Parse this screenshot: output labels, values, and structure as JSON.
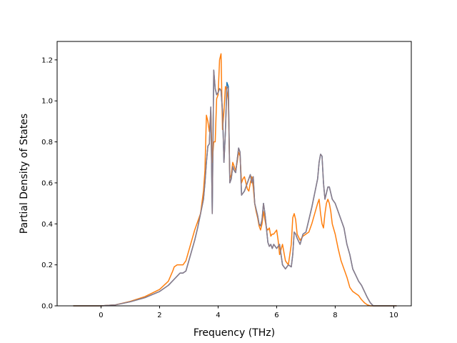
{
  "chart_data": {
    "type": "line",
    "title": "",
    "xlabel": "Frequency (THz)",
    "ylabel": "Partial Density of States",
    "xlim": [
      -1.5,
      10.6
    ],
    "ylim": [
      0.0,
      1.29
    ],
    "xticks": [
      0,
      2,
      4,
      6,
      8,
      10
    ],
    "yticks": [
      0.0,
      0.2,
      0.4,
      0.6,
      0.8,
      1.0,
      1.2
    ],
    "xtick_labels": [
      "0",
      "2",
      "4",
      "6",
      "8",
      "10"
    ],
    "ytick_labels": [
      "0.0",
      "0.2",
      "0.4",
      "0.6",
      "0.8",
      "1.0",
      "1.2"
    ],
    "grid": false,
    "legend": "none",
    "series": [
      {
        "color": "#1f77b4",
        "x": [
          -0.95,
          0.0,
          0.5,
          1.0,
          1.5,
          2.0,
          2.3,
          2.5,
          2.7,
          2.8,
          2.9,
          3.0,
          3.1,
          3.2,
          3.3,
          3.4,
          3.5,
          3.55,
          3.6,
          3.65,
          3.7,
          3.75,
          3.8,
          3.85,
          3.9,
          3.95,
          4.0,
          4.05,
          4.1,
          4.15,
          4.2,
          4.25,
          4.3,
          4.35,
          4.4,
          4.45,
          4.5,
          4.55,
          4.6,
          4.65,
          4.7,
          4.75,
          4.8,
          4.85,
          4.9,
          4.95,
          5.0,
          5.05,
          5.1,
          5.15,
          5.2,
          5.25,
          5.3,
          5.35,
          5.4,
          5.45,
          5.5,
          5.55,
          5.6,
          5.65,
          5.7,
          5.75,
          5.8,
          5.85,
          5.9,
          6.0,
          6.1,
          6.2,
          6.3,
          6.4,
          6.5,
          6.55,
          6.6,
          6.65,
          6.7,
          6.8,
          6.9,
          7.0,
          7.1,
          7.2,
          7.3,
          7.4,
          7.45,
          7.5,
          7.55,
          7.6,
          7.65,
          7.7,
          7.75,
          7.8,
          7.85,
          7.9,
          8.0,
          8.1,
          8.2,
          8.3,
          8.4,
          8.5,
          8.6,
          8.7,
          8.8,
          8.9,
          9.0,
          9.1,
          9.2,
          9.3,
          10.1
        ],
        "y": [
          0.0,
          0.0,
          0.005,
          0.02,
          0.04,
          0.07,
          0.1,
          0.13,
          0.16,
          0.16,
          0.17,
          0.22,
          0.27,
          0.32,
          0.38,
          0.45,
          0.52,
          0.6,
          0.7,
          0.78,
          0.79,
          0.97,
          0.45,
          1.15,
          1.06,
          1.03,
          1.04,
          1.06,
          1.05,
          0.95,
          0.7,
          0.85,
          1.09,
          1.07,
          0.6,
          0.62,
          0.68,
          0.66,
          0.65,
          0.71,
          0.77,
          0.75,
          0.54,
          0.55,
          0.56,
          0.58,
          0.6,
          0.62,
          0.64,
          0.6,
          0.63,
          0.5,
          0.47,
          0.44,
          0.4,
          0.39,
          0.42,
          0.5,
          0.45,
          0.38,
          0.31,
          0.29,
          0.3,
          0.28,
          0.3,
          0.28,
          0.3,
          0.2,
          0.18,
          0.2,
          0.19,
          0.25,
          0.36,
          0.35,
          0.33,
          0.3,
          0.35,
          0.36,
          0.42,
          0.48,
          0.55,
          0.62,
          0.7,
          0.74,
          0.73,
          0.6,
          0.52,
          0.55,
          0.58,
          0.58,
          0.55,
          0.52,
          0.5,
          0.46,
          0.42,
          0.38,
          0.3,
          0.25,
          0.18,
          0.15,
          0.12,
          0.1,
          0.07,
          0.04,
          0.015,
          0.0,
          0.0
        ]
      },
      {
        "color": "#ff7f0e",
        "x": [
          -0.95,
          0.0,
          0.5,
          1.0,
          1.5,
          2.0,
          2.3,
          2.45,
          2.5,
          2.6,
          2.7,
          2.8,
          2.9,
          3.0,
          3.1,
          3.2,
          3.3,
          3.4,
          3.5,
          3.55,
          3.6,
          3.65,
          3.7,
          3.75,
          3.8,
          3.85,
          3.9,
          3.95,
          4.0,
          4.05,
          4.1,
          4.15,
          4.2,
          4.25,
          4.3,
          4.35,
          4.4,
          4.45,
          4.5,
          4.55,
          4.6,
          4.65,
          4.7,
          4.75,
          4.8,
          4.85,
          4.9,
          4.95,
          5.0,
          5.05,
          5.1,
          5.15,
          5.2,
          5.25,
          5.3,
          5.35,
          5.4,
          5.45,
          5.5,
          5.55,
          5.6,
          5.65,
          5.7,
          5.75,
          5.8,
          5.85,
          5.9,
          6.0,
          6.05,
          6.1,
          6.2,
          6.3,
          6.4,
          6.5,
          6.55,
          6.6,
          6.65,
          6.7,
          6.8,
          6.9,
          7.0,
          7.1,
          7.2,
          7.3,
          7.4,
          7.45,
          7.5,
          7.55,
          7.6,
          7.65,
          7.7,
          7.75,
          7.8,
          7.85,
          7.9,
          8.0,
          8.1,
          8.2,
          8.3,
          8.4,
          8.5,
          8.6,
          8.7,
          8.8,
          8.9,
          9.0,
          9.1,
          9.2,
          10.1
        ],
        "y": [
          0.0,
          0.0,
          0.005,
          0.022,
          0.045,
          0.08,
          0.12,
          0.17,
          0.19,
          0.2,
          0.2,
          0.2,
          0.22,
          0.27,
          0.32,
          0.37,
          0.41,
          0.45,
          0.56,
          0.66,
          0.93,
          0.9,
          0.85,
          0.95,
          0.7,
          0.8,
          0.8,
          1.01,
          1.03,
          1.2,
          1.23,
          0.86,
          0.95,
          1.07,
          1.05,
          1.0,
          0.62,
          0.64,
          0.7,
          0.68,
          0.66,
          0.7,
          0.75,
          0.73,
          0.6,
          0.62,
          0.63,
          0.6,
          0.57,
          0.56,
          0.6,
          0.63,
          0.58,
          0.5,
          0.46,
          0.43,
          0.39,
          0.37,
          0.4,
          0.46,
          0.42,
          0.38,
          0.37,
          0.38,
          0.34,
          0.35,
          0.35,
          0.37,
          0.32,
          0.25,
          0.3,
          0.22,
          0.2,
          0.3,
          0.43,
          0.45,
          0.42,
          0.35,
          0.32,
          0.34,
          0.35,
          0.36,
          0.4,
          0.45,
          0.5,
          0.52,
          0.45,
          0.4,
          0.38,
          0.45,
          0.5,
          0.52,
          0.5,
          0.46,
          0.4,
          0.35,
          0.28,
          0.22,
          0.18,
          0.14,
          0.09,
          0.07,
          0.06,
          0.05,
          0.03,
          0.015,
          0.005,
          0.0,
          0.0
        ]
      },
      {
        "color": "#8c7b88",
        "x": [
          -0.95,
          0.0,
          0.5,
          1.0,
          1.5,
          2.0,
          2.3,
          2.5,
          2.7,
          2.8,
          2.9,
          3.0,
          3.1,
          3.2,
          3.3,
          3.4,
          3.5,
          3.55,
          3.6,
          3.65,
          3.7,
          3.75,
          3.8,
          3.85,
          3.9,
          3.95,
          4.0,
          4.05,
          4.1,
          4.15,
          4.2,
          4.25,
          4.3,
          4.35,
          4.4,
          4.45,
          4.5,
          4.55,
          4.6,
          4.65,
          4.7,
          4.75,
          4.8,
          4.85,
          4.9,
          4.95,
          5.0,
          5.05,
          5.1,
          5.15,
          5.2,
          5.25,
          5.3,
          5.35,
          5.4,
          5.45,
          5.5,
          5.55,
          5.6,
          5.65,
          5.7,
          5.75,
          5.8,
          5.85,
          5.9,
          6.0,
          6.1,
          6.2,
          6.3,
          6.4,
          6.5,
          6.55,
          6.6,
          6.65,
          6.7,
          6.8,
          6.9,
          7.0,
          7.1,
          7.2,
          7.3,
          7.4,
          7.45,
          7.5,
          7.55,
          7.6,
          7.65,
          7.7,
          7.75,
          7.8,
          7.85,
          7.9,
          8.0,
          8.1,
          8.2,
          8.3,
          8.4,
          8.5,
          8.6,
          8.7,
          8.8,
          8.9,
          9.0,
          9.1,
          9.2,
          9.3,
          10.1
        ],
        "y": [
          0.0,
          0.0,
          0.005,
          0.02,
          0.04,
          0.07,
          0.1,
          0.13,
          0.16,
          0.16,
          0.17,
          0.22,
          0.27,
          0.32,
          0.38,
          0.45,
          0.52,
          0.6,
          0.7,
          0.78,
          0.79,
          0.97,
          0.45,
          1.15,
          1.06,
          1.03,
          1.04,
          1.06,
          1.05,
          0.95,
          0.7,
          0.85,
          1.07,
          1.06,
          0.6,
          0.62,
          0.68,
          0.66,
          0.65,
          0.71,
          0.77,
          0.75,
          0.54,
          0.55,
          0.56,
          0.58,
          0.6,
          0.62,
          0.64,
          0.6,
          0.63,
          0.5,
          0.47,
          0.44,
          0.4,
          0.39,
          0.42,
          0.5,
          0.45,
          0.38,
          0.31,
          0.29,
          0.3,
          0.28,
          0.3,
          0.28,
          0.3,
          0.2,
          0.18,
          0.2,
          0.19,
          0.25,
          0.36,
          0.35,
          0.33,
          0.3,
          0.35,
          0.36,
          0.42,
          0.48,
          0.55,
          0.62,
          0.7,
          0.74,
          0.73,
          0.6,
          0.52,
          0.55,
          0.58,
          0.58,
          0.55,
          0.52,
          0.5,
          0.46,
          0.42,
          0.38,
          0.3,
          0.25,
          0.18,
          0.15,
          0.12,
          0.1,
          0.07,
          0.04,
          0.015,
          0.0,
          0.0
        ]
      }
    ]
  }
}
